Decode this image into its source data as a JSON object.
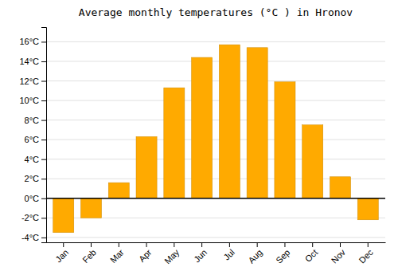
{
  "chart_data": {
    "type": "bar",
    "title": "Average monthly temperatures (°C ) in Hronov",
    "categories": [
      "Jan",
      "Feb",
      "Mar",
      "Apr",
      "May",
      "Jun",
      "Jul",
      "Aug",
      "Sep",
      "Oct",
      "Nov",
      "Dec"
    ],
    "values": [
      -3.5,
      -2.0,
      1.6,
      6.3,
      11.3,
      14.4,
      15.7,
      15.4,
      11.9,
      7.5,
      2.2,
      -2.2
    ],
    "color": "#FFAA00",
    "ylim": [
      -4.5,
      17.5
    ],
    "yticks": [
      {
        "value": -4,
        "label": "-4°C"
      },
      {
        "value": -2,
        "label": "-2°C"
      },
      {
        "value": 0,
        "label": "0°C"
      },
      {
        "value": 2,
        "label": "2°C"
      },
      {
        "value": 4,
        "label": "4°C"
      },
      {
        "value": 6,
        "label": "6°C"
      },
      {
        "value": 8,
        "label": "8°C"
      },
      {
        "value": 10,
        "label": "10°C"
      },
      {
        "value": 12,
        "label": "12°C"
      },
      {
        "value": 14,
        "label": "14°C"
      },
      {
        "value": 16,
        "label": "16°C"
      }
    ],
    "grid": true
  }
}
